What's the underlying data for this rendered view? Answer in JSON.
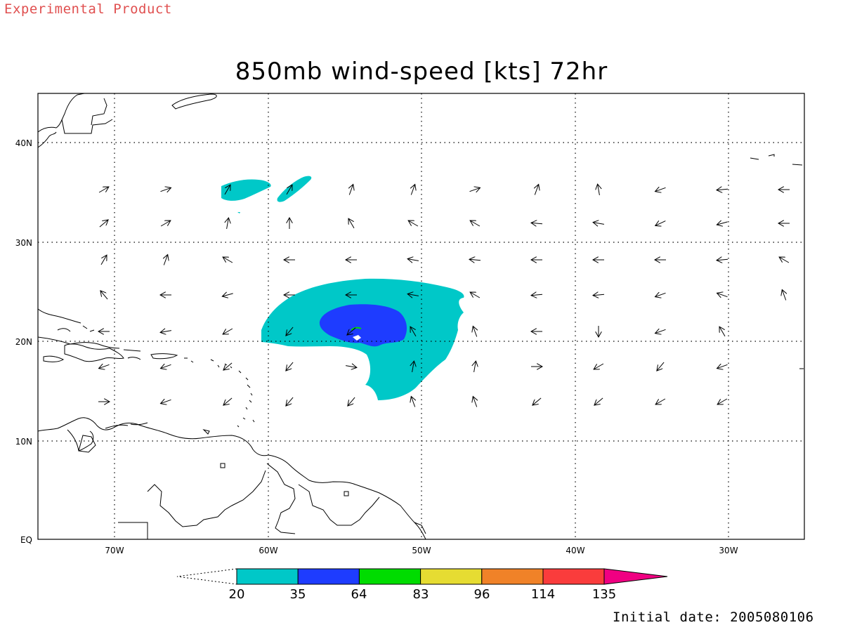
{
  "header": {
    "product_label": "Experimental Product",
    "title": "850mb wind-speed [kts] 72hr"
  },
  "footer": {
    "initial_date": "Initial date: 2005080106"
  },
  "map": {
    "lon_labels": [
      "70W",
      "60W",
      "50W",
      "40W",
      "30W"
    ],
    "lat_labels": [
      "40N",
      "30N",
      "20N",
      "10N",
      "EQ"
    ],
    "lon_values": [
      -70,
      -60,
      -50,
      -40,
      -30
    ],
    "lat_values": [
      40,
      30,
      20,
      10,
      0
    ],
    "colors": {
      "coast": "#000000",
      "grid": "#000000",
      "shade_20": "#00c8c8",
      "shade_35": "#1e3cff",
      "shade_64": "#00dc00"
    }
  },
  "colorbar": {
    "ticks": [
      "20",
      "35",
      "64",
      "83",
      "96",
      "114",
      "135"
    ],
    "colors": [
      "#00c8c8",
      "#1e3cff",
      "#00dc00",
      "#e6dc32",
      "#f08228",
      "#fa3c3c",
      "#f00082"
    ]
  }
}
